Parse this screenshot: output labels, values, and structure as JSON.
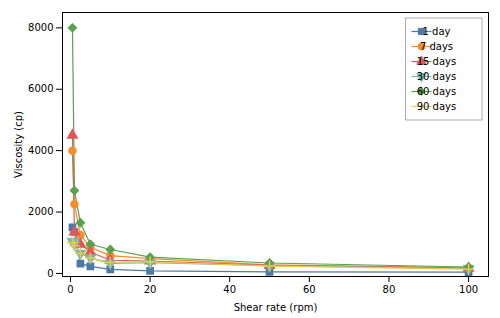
{
  "chart_data": {
    "type": "line",
    "xlabel": "Shear rate (rpm)",
    "ylabel": "Viscosity (cp)",
    "x": [
      0.5,
      1,
      2.5,
      5,
      10,
      20,
      50,
      100
    ],
    "series": [
      {
        "name": "1 day",
        "marker": "square",
        "values": [
          1500,
          1350,
          320,
          230,
          130,
          80,
          50,
          40
        ]
      },
      {
        "name": "7 days",
        "marker": "circle",
        "values": [
          4000,
          2250,
          1250,
          850,
          580,
          480,
          280,
          180
        ]
      },
      {
        "name": "15 days",
        "marker": "triangle-up",
        "values": [
          4500,
          1350,
          950,
          700,
          430,
          400,
          260,
          170
        ]
      },
      {
        "name": "30 days",
        "marker": "triangle-down",
        "values": [
          1050,
          950,
          650,
          500,
          330,
          350,
          250,
          160
        ]
      },
      {
        "name": "60 days",
        "marker": "diamond",
        "values": [
          8000,
          2700,
          1650,
          950,
          780,
          530,
          340,
          210
        ]
      },
      {
        "name": "90 days",
        "marker": "plus",
        "values": [
          1000,
          900,
          650,
          500,
          360,
          380,
          240,
          140
        ]
      }
    ],
    "xlim": [
      -2,
      105
    ],
    "ylim": [
      -100,
      8500
    ],
    "xticks": [
      0,
      20,
      40,
      60,
      80,
      100
    ],
    "yticks": [
      0,
      2000,
      4000,
      6000,
      8000
    ],
    "grid": false,
    "legend": "upper right"
  }
}
